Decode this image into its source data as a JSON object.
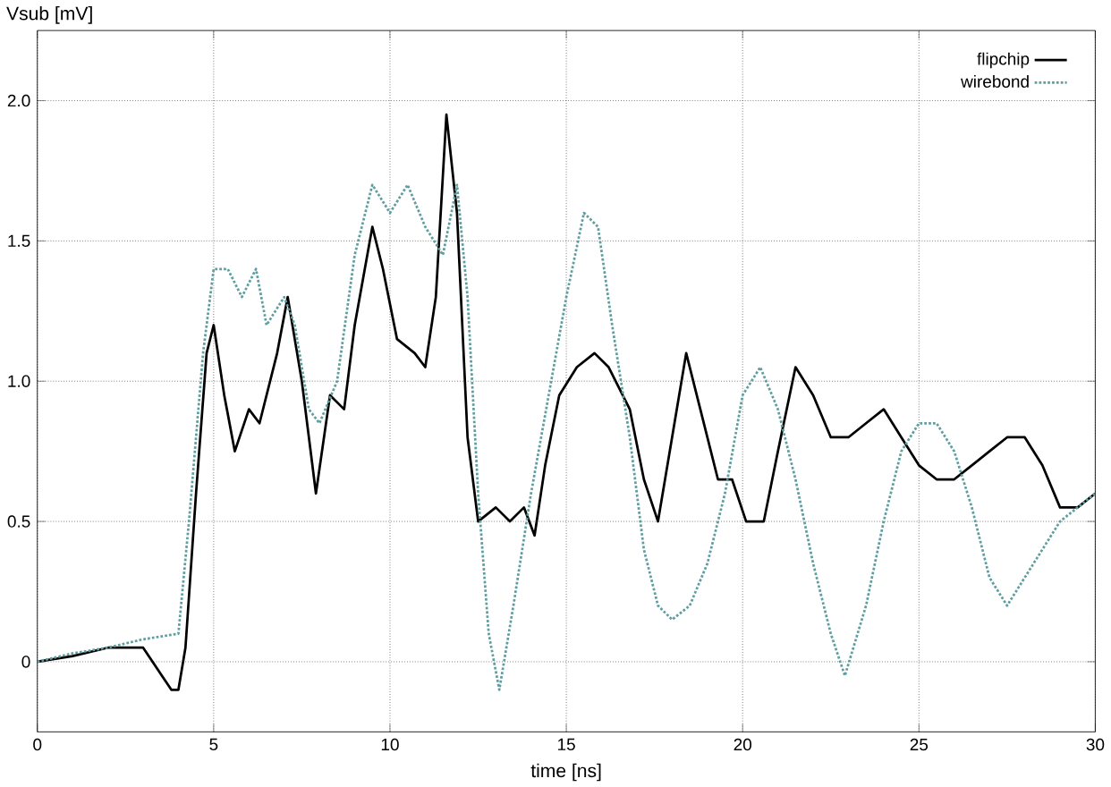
{
  "chart_data": {
    "type": "line",
    "xlabel": "time [ns]",
    "ylabel": "Vsub [mV]",
    "xlim": [
      0,
      30
    ],
    "ylim": [
      -0.25,
      2.25
    ],
    "xticks": [
      0,
      5,
      10,
      15,
      20,
      25,
      30
    ],
    "yticks": [
      0,
      0.5,
      {
        "value": 1.0,
        "label": "1.0"
      },
      1.5,
      {
        "value": 2.0,
        "label": "2.0"
      }
    ],
    "grid": true,
    "legend": "top right",
    "marker": "none",
    "series": [
      {
        "name": "flipchip",
        "color": "#000000",
        "line_style": "solid",
        "x": [
          0,
          1,
          2,
          3,
          3.8,
          4.0,
          4.2,
          4.5,
          4.8,
          5.0,
          5.3,
          5.6,
          6.0,
          6.3,
          6.8,
          7.1,
          7.5,
          7.9,
          8.3,
          8.7,
          9.0,
          9.5,
          9.8,
          10.2,
          10.7,
          11.0,
          11.3,
          11.6,
          11.9,
          12.2,
          12.5,
          13.0,
          13.4,
          13.8,
          14.1,
          14.4,
          14.8,
          15.3,
          15.8,
          16.2,
          16.8,
          17.2,
          17.6,
          18.0,
          18.4,
          18.8,
          19.3,
          19.7,
          20.1,
          20.6,
          21.0,
          21.5,
          22.0,
          22.5,
          23.0,
          23.5,
          24.0,
          24.5,
          25.0,
          25.5,
          26.0,
          26.5,
          27.0,
          27.5,
          28.0,
          28.5,
          29.0,
          29.5,
          30
        ],
        "values": [
          0.0,
          0.02,
          0.05,
          0.05,
          -0.1,
          -0.1,
          0.05,
          0.6,
          1.1,
          1.2,
          0.95,
          0.75,
          0.9,
          0.85,
          1.1,
          1.3,
          1.0,
          0.6,
          0.95,
          0.9,
          1.2,
          1.55,
          1.4,
          1.15,
          1.1,
          1.05,
          1.3,
          1.95,
          1.6,
          0.8,
          0.5,
          0.55,
          0.5,
          0.55,
          0.45,
          0.7,
          0.95,
          1.05,
          1.1,
          1.05,
          0.9,
          0.65,
          0.5,
          0.8,
          1.1,
          0.9,
          0.65,
          0.65,
          0.5,
          0.5,
          0.75,
          1.05,
          0.95,
          0.8,
          0.8,
          0.85,
          0.9,
          0.8,
          0.7,
          0.65,
          0.65,
          0.7,
          0.75,
          0.8,
          0.8,
          0.7,
          0.55,
          0.55,
          0.6
        ]
      },
      {
        "name": "wirebond",
        "color": "#5f9ea0",
        "line_style": "dotted",
        "x": [
          0,
          1,
          2,
          3,
          4.0,
          4.3,
          4.7,
          5.0,
          5.4,
          5.8,
          6.2,
          6.5,
          7.0,
          7.3,
          7.7,
          8.0,
          8.5,
          9.0,
          9.5,
          10.0,
          10.5,
          11.0,
          11.5,
          11.9,
          12.2,
          12.5,
          12.8,
          13.1,
          13.5,
          14.0,
          14.5,
          15.0,
          15.5,
          15.9,
          16.3,
          16.8,
          17.2,
          17.6,
          18.0,
          18.5,
          19.0,
          19.5,
          20.0,
          20.5,
          21.0,
          21.5,
          22.0,
          22.5,
          22.9,
          23.5,
          24.0,
          24.5,
          25.0,
          25.5,
          26.0,
          26.5,
          27.0,
          27.5,
          28.0,
          28.5,
          29.0,
          29.5,
          30
        ],
        "values": [
          0.0,
          0.03,
          0.05,
          0.08,
          0.1,
          0.5,
          1.1,
          1.4,
          1.4,
          1.3,
          1.4,
          1.2,
          1.3,
          1.2,
          0.9,
          0.85,
          1.0,
          1.45,
          1.7,
          1.6,
          1.7,
          1.55,
          1.45,
          1.7,
          1.3,
          0.6,
          0.1,
          -0.1,
          0.2,
          0.6,
          0.95,
          1.3,
          1.6,
          1.55,
          1.2,
          0.8,
          0.4,
          0.2,
          0.15,
          0.2,
          0.35,
          0.6,
          0.95,
          1.05,
          0.9,
          0.65,
          0.35,
          0.1,
          -0.05,
          0.2,
          0.5,
          0.75,
          0.85,
          0.85,
          0.75,
          0.55,
          0.3,
          0.2,
          0.3,
          0.4,
          0.5,
          0.55,
          0.6
        ]
      }
    ]
  }
}
